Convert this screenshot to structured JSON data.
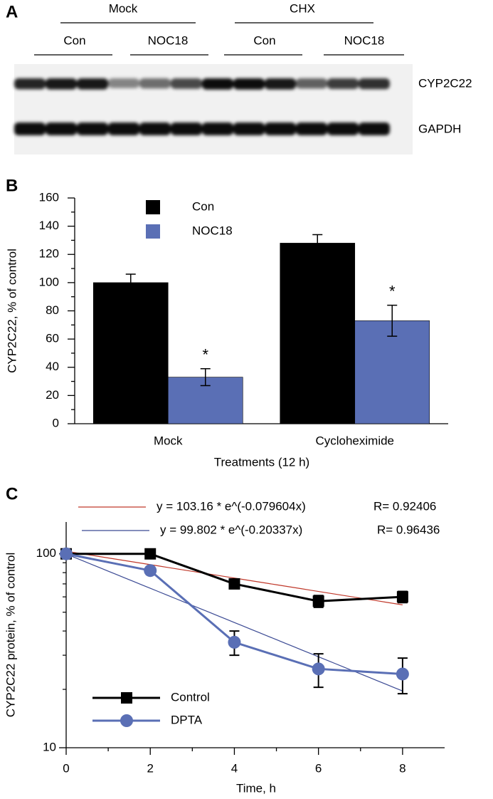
{
  "panel_labels": [
    "A",
    "B",
    "C"
  ],
  "blot": {
    "groups": [
      "Mock",
      "CHX"
    ],
    "subgroups": [
      "Con",
      "NOC18",
      "Con",
      "NOC18"
    ],
    "bands": [
      "CYP2C22",
      "GAPDH"
    ]
  },
  "chart_data": [
    {
      "type": "bar",
      "ylabel": "CYP2C22, % of control",
      "xlabel": "Treatments (12 h)",
      "categories": [
        "Mock",
        "Cycloheximide"
      ],
      "series": [
        {
          "name": "Con",
          "color": "#000000",
          "values": [
            100,
            128
          ],
          "errors": [
            6,
            6
          ]
        },
        {
          "name": "NOC18",
          "color": "#5a6fb5",
          "values": [
            33,
            73
          ],
          "errors": [
            6,
            11
          ],
          "annotations": [
            "*",
            "*"
          ]
        }
      ],
      "ylim": [
        0,
        160
      ],
      "yticks": [
        0,
        20,
        40,
        60,
        80,
        100,
        120,
        140,
        160
      ],
      "legend": "top-left"
    },
    {
      "type": "line",
      "ylabel": "CYP2C22 protein, % of control",
      "xlabel": "Time, h",
      "log_y": true,
      "x": [
        0,
        2,
        4,
        6,
        8
      ],
      "series": [
        {
          "name": "Control",
          "color": "#000000",
          "marker": "square",
          "values": [
            100,
            100,
            70,
            57,
            60
          ],
          "errors": [
            null,
            null,
            null,
            4,
            4
          ]
        },
        {
          "name": "DPTA",
          "color": "#5a6fb5",
          "marker": "circle",
          "values": [
            100,
            82,
            35,
            25.5,
            24
          ],
          "errors": [
            null,
            null,
            5,
            5,
            5
          ]
        }
      ],
      "fits": [
        {
          "label": "y = 103.16 * e^(-0.079604x)",
          "r_label": "R= 0.92406",
          "a": 103.16,
          "b": -0.079604,
          "color": "#c0392b"
        },
        {
          "label": "y = 99.802 * e^(-0.20337x)",
          "r_label": "R= 0.96436",
          "a": 99.802,
          "b": -0.20337,
          "color": "#3b4a94"
        }
      ],
      "xlim": [
        0,
        9
      ],
      "xticks": [
        0,
        2,
        4,
        6,
        8
      ],
      "ylim": [
        10,
        146
      ],
      "yticks": [
        10,
        100
      ],
      "legend": "bottom-left"
    }
  ]
}
